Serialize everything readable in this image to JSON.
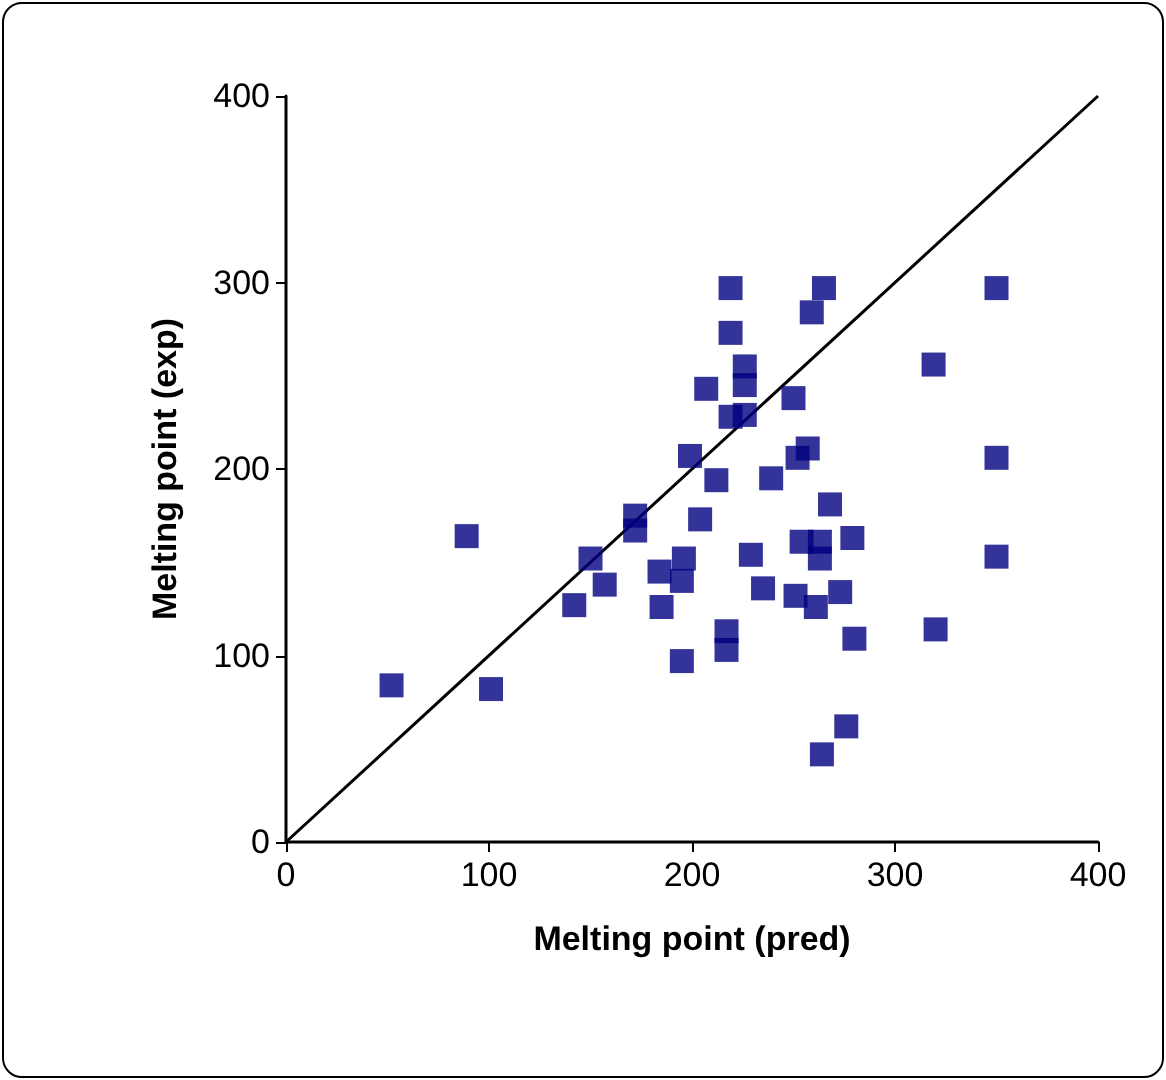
{
  "chart_data": {
    "type": "scatter",
    "xlabel": "Melting point (pred)",
    "ylabel": "Melting point (exp)",
    "xlim": [
      0,
      400
    ],
    "ylim": [
      0,
      400
    ],
    "xticks": [
      0,
      100,
      200,
      300,
      400
    ],
    "yticks": [
      0,
      100,
      200,
      300,
      400
    ],
    "grid": false,
    "series": [
      {
        "color": "#000080",
        "marker": "square",
        "x": [
          52,
          101,
          89,
          150,
          157,
          142,
          172,
          172,
          184,
          185,
          195,
          196,
          195,
          199,
          204,
          207,
          212,
          217,
          217,
          219,
          219,
          219,
          226,
          226,
          226,
          229,
          235,
          239,
          250,
          252,
          251,
          257,
          254,
          263,
          259,
          265,
          261,
          263,
          268,
          273,
          264,
          276,
          280,
          279,
          319,
          320,
          350,
          350,
          350
        ],
        "values": [
          84,
          82,
          164,
          152,
          138,
          127,
          175,
          167,
          145,
          126,
          140,
          152,
          97,
          207,
          173,
          243,
          194,
          113,
          103,
          297,
          273,
          228,
          229,
          255,
          245,
          154,
          136,
          195,
          238,
          206,
          132,
          211,
          161,
          161,
          284,
          297,
          126,
          152,
          181,
          134,
          47,
          62,
          109,
          163,
          256,
          114,
          297,
          206,
          153
        ]
      },
      {
        "type": "line",
        "color": "#000000",
        "marker": "none",
        "x": [
          0,
          400
        ],
        "values": [
          0,
          400
        ]
      }
    ]
  }
}
